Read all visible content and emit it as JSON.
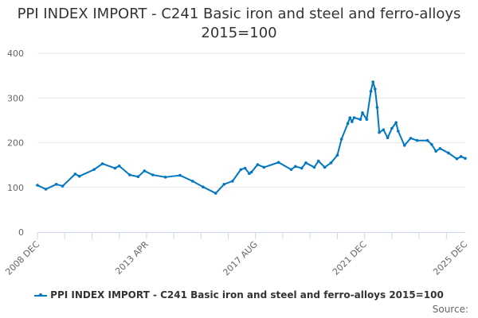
{
  "chart_data": {
    "type": "line",
    "title": "PPI INDEX IMPORT - C241 Basic iron and steel and ferro-alloys 2015=100",
    "xlabel": "",
    "ylabel": "",
    "ylim": [
      0,
      400
    ],
    "yticks": [
      0,
      100,
      200,
      300,
      400
    ],
    "xlim": [
      "2008-12",
      "2025-12"
    ],
    "xtick_labels": [
      "2008 DEC",
      "2013 APR",
      "2017 AUG",
      "2021 DEC",
      "2025 DEC"
    ],
    "grid": true,
    "legend": "bottom",
    "color": "#0077c0",
    "series": [
      {
        "name": "PPI INDEX IMPORT - C241 Basic iron and steel and ferro-alloys 2015=100",
        "x": [
          "2008-12",
          "2009-04",
          "2009-09",
          "2009-12",
          "2010-06",
          "2010-08",
          "2011-03",
          "2011-07",
          "2012-01",
          "2012-03",
          "2012-08",
          "2012-12",
          "2013-03",
          "2013-07",
          "2014-01",
          "2014-08",
          "2015-02",
          "2015-07",
          "2016-01",
          "2016-05",
          "2016-09",
          "2017-01",
          "2017-03",
          "2017-05",
          "2017-06",
          "2017-09",
          "2017-12",
          "2018-07",
          "2019-01",
          "2019-03",
          "2019-06",
          "2019-08",
          "2019-12",
          "2020-02",
          "2020-05",
          "2020-08",
          "2020-11",
          "2021-01",
          "2021-04",
          "2021-05",
          "2021-06",
          "2021-07",
          "2021-10",
          "2021-11",
          "2022-01",
          "2022-03",
          "2022-04",
          "2022-05",
          "2022-06",
          "2022-07",
          "2022-09",
          "2022-11",
          "2023-01",
          "2023-03",
          "2023-04",
          "2023-07",
          "2023-10",
          "2024-01",
          "2024-06",
          "2024-08",
          "2024-10",
          "2024-12",
          "2025-04",
          "2025-08",
          "2025-10",
          "2025-12"
        ],
        "y": [
          105,
          96,
          107,
          103,
          130,
          125,
          140,
          153,
          143,
          148,
          128,
          124,
          137,
          128,
          123,
          127,
          114,
          101,
          87,
          107,
          114,
          140,
          143,
          131,
          134,
          151,
          145,
          156,
          140,
          147,
          143,
          155,
          145,
          159,
          145,
          155,
          172,
          208,
          243,
          256,
          247,
          256,
          252,
          267,
          252,
          315,
          336,
          320,
          279,
          223,
          229,
          211,
          232,
          245,
          226,
          194,
          210,
          205,
          205,
          196,
          181,
          187,
          177,
          164,
          169,
          165
        ]
      }
    ]
  },
  "legend": {
    "label": "PPI INDEX IMPORT - C241 Basic iron and steel and ferro-alloys 2015=100"
  },
  "source": {
    "label": "Source:"
  }
}
